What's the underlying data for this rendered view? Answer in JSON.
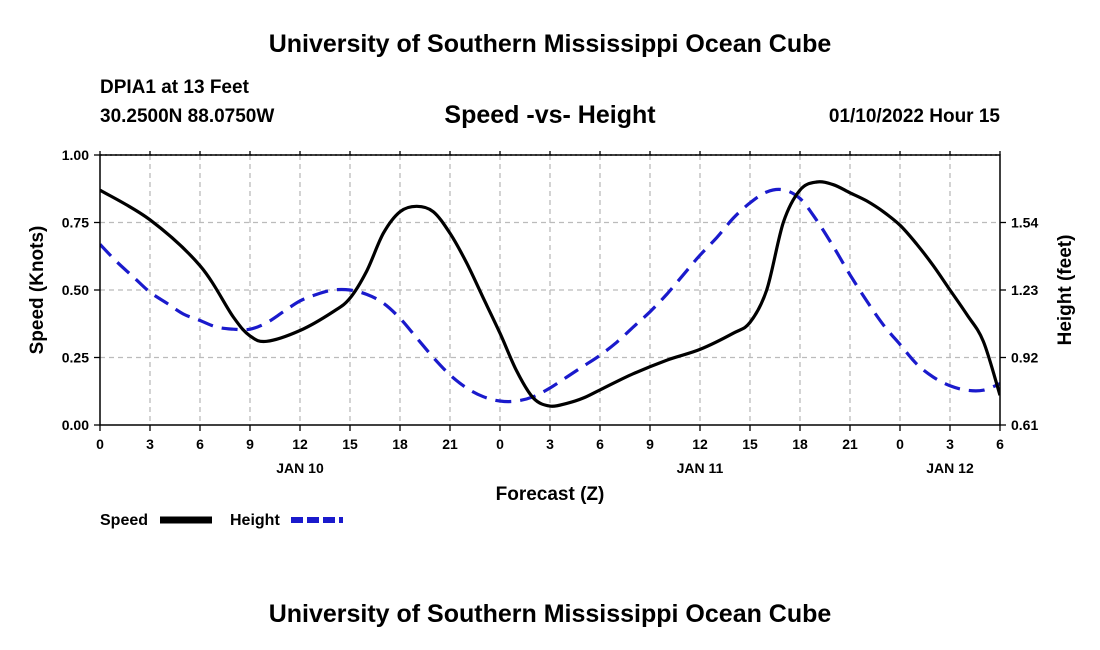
{
  "header": {
    "title": "University of Southern Mississippi Ocean Cube",
    "station": "DPIA1 at 13 Feet",
    "coords": "30.2500N  88.0750W",
    "subtitle": "Speed -vs- Height",
    "datetime": "01/10/2022 Hour 15"
  },
  "footer": {
    "title": "University of Southern Mississippi Ocean Cube"
  },
  "colors": {
    "speed": "#000000",
    "height": "#1a1acc",
    "grid": "#bbbbbb"
  },
  "chart_data": {
    "type": "line",
    "title": "Speed -vs- Height",
    "xlabel": "Forecast (Z)",
    "ylabel": "Speed (Knots)",
    "y2label": "Height (feet)",
    "xlim": [
      0,
      54
    ],
    "ylim": [
      0,
      1
    ],
    "y2lim": [
      0.61,
      1.85
    ],
    "x_ticks": [
      0,
      3,
      6,
      9,
      12,
      15,
      18,
      21,
      24,
      27,
      30,
      33,
      36,
      39,
      42,
      45,
      48,
      51,
      54
    ],
    "x_tick_labels": [
      "0",
      "3",
      "6",
      "9",
      "12",
      "15",
      "18",
      "21",
      "0",
      "3",
      "6",
      "9",
      "12",
      "15",
      "18",
      "21",
      "0",
      "3",
      "6"
    ],
    "y_ticks": [
      0,
      0.25,
      0.5,
      0.75,
      1.0
    ],
    "y_tick_labels": [
      "0.00",
      "0.25",
      "0.50",
      "0.75",
      "1.00"
    ],
    "y2_ticks": [
      0.61,
      0.92,
      1.23,
      1.54
    ],
    "y2_tick_labels": [
      "0.61",
      "0.92",
      "1.23",
      "1.54"
    ],
    "day_labels": [
      {
        "x": 12,
        "label": "JAN 10"
      },
      {
        "x": 36,
        "label": "JAN 11"
      },
      {
        "x": 51,
        "label": "JAN 12"
      }
    ],
    "grid": true,
    "legend": "bottom-left",
    "series": [
      {
        "name": "Speed",
        "axis": "left",
        "style": "solid",
        "x": [
          0,
          3,
          6,
          8,
          9,
          10,
          12,
          14,
          15,
          16,
          17,
          18,
          19,
          20,
          21,
          22,
          23,
          24,
          25,
          26,
          27,
          28,
          29,
          30,
          32,
          34,
          36,
          38,
          39,
          40,
          41,
          42,
          43,
          44,
          45,
          46,
          47,
          48,
          49,
          50,
          51,
          52,
          53,
          54
        ],
        "y": [
          0.87,
          0.76,
          0.59,
          0.4,
          0.33,
          0.31,
          0.35,
          0.42,
          0.47,
          0.57,
          0.71,
          0.79,
          0.81,
          0.79,
          0.71,
          0.6,
          0.47,
          0.34,
          0.2,
          0.1,
          0.07,
          0.08,
          0.1,
          0.13,
          0.19,
          0.24,
          0.28,
          0.34,
          0.38,
          0.5,
          0.75,
          0.87,
          0.9,
          0.89,
          0.86,
          0.83,
          0.79,
          0.74,
          0.67,
          0.59,
          0.5,
          0.41,
          0.31,
          0.11
        ]
      },
      {
        "name": "Height",
        "axis": "right",
        "style": "dashed",
        "x": [
          0,
          1,
          2,
          3,
          4,
          5,
          6,
          7,
          8,
          9,
          10,
          11,
          12,
          13,
          14,
          15,
          16,
          17,
          18,
          19,
          20,
          21,
          22,
          23,
          24,
          25,
          26,
          27,
          28,
          29,
          30,
          31,
          32,
          33,
          34,
          35,
          36,
          37,
          38,
          39,
          40,
          41,
          42,
          43,
          44,
          45,
          46,
          47,
          48,
          49,
          50,
          51,
          52,
          53,
          54
        ],
        "y": [
          1.44,
          1.36,
          1.29,
          1.22,
          1.17,
          1.12,
          1.09,
          1.06,
          1.05,
          1.05,
          1.08,
          1.13,
          1.18,
          1.21,
          1.23,
          1.23,
          1.21,
          1.17,
          1.1,
          1.01,
          0.92,
          0.84,
          0.78,
          0.74,
          0.72,
          0.72,
          0.74,
          0.78,
          0.83,
          0.88,
          0.93,
          0.99,
          1.06,
          1.13,
          1.21,
          1.3,
          1.39,
          1.47,
          1.56,
          1.63,
          1.68,
          1.69,
          1.65,
          1.55,
          1.43,
          1.3,
          1.18,
          1.07,
          0.98,
          0.89,
          0.83,
          0.79,
          0.77,
          0.77,
          0.8
        ]
      }
    ]
  }
}
